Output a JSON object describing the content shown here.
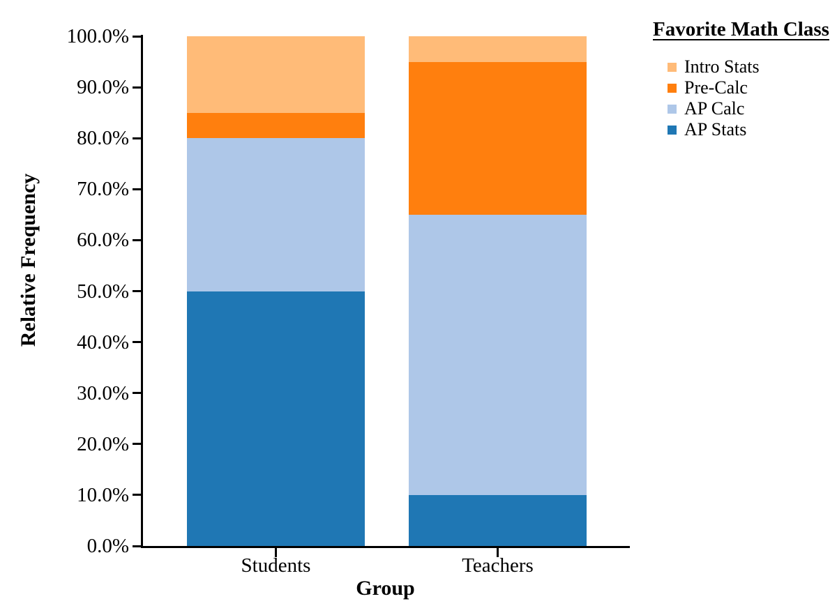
{
  "chart_data": {
    "type": "bar",
    "subtype": "stacked",
    "units": "percent",
    "xlabel": "Group",
    "ylabel": "Relative Frequency",
    "ylim": [
      0,
      100
    ],
    "grid": false,
    "y_tick_labels": [
      "0.0%",
      "10.0%",
      "20.0%",
      "30.0%",
      "40.0%",
      "50.0%",
      "60.0%",
      "70.0%",
      "80.0%",
      "90.0%",
      "100.0%"
    ],
    "categories": [
      "Students",
      "Teachers"
    ],
    "series": [
      {
        "name": "AP Stats",
        "color": "#1f77b4",
        "values": [
          50,
          10
        ]
      },
      {
        "name": "AP Calc",
        "color": "#aec7e8",
        "values": [
          30,
          55
        ]
      },
      {
        "name": "Pre-Calc",
        "color": "#ff7f0e",
        "values": [
          5,
          30
        ]
      },
      {
        "name": "Intro Stats",
        "color": "#ffbb78",
        "values": [
          15,
          5
        ]
      }
    ],
    "stack_order": "bottom_to_top",
    "legend": {
      "title": "Favorite Math Class",
      "position": "top-right",
      "entries": [
        "Intro Stats",
        "Pre-Calc",
        "AP Calc",
        "AP Stats"
      ]
    }
  }
}
